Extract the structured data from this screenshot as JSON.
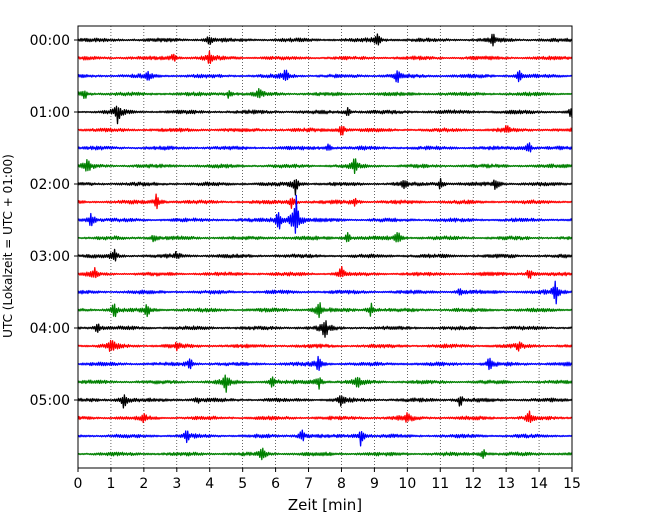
{
  "chart_data": {
    "type": "line",
    "xlabel": "Zeit  [min]",
    "ylabel": "UTC (Lokalzeit = UTC + 01:00)",
    "xlim": [
      0,
      15
    ],
    "x_ticks": [
      0,
      1,
      2,
      3,
      4,
      5,
      6,
      7,
      8,
      9,
      10,
      11,
      12,
      13,
      14,
      15
    ],
    "x_tick_labels": [
      "0",
      "1",
      "2",
      "3",
      "4",
      "5",
      "6",
      "7",
      "8",
      "9",
      "10",
      "11",
      "12",
      "13",
      "14",
      "15"
    ],
    "y_tick_labels": [
      "00:00",
      "01:00",
      "02:00",
      "03:00",
      "04:00",
      "05:00"
    ],
    "y_tick_trace_index": [
      0,
      4,
      8,
      12,
      16,
      20
    ],
    "grid_vertical": true,
    "line_colors": [
      "#000000",
      "#ff0000",
      "#0000ff",
      "#008000"
    ],
    "trace_count": 24,
    "traces": [
      {
        "row": 0,
        "color": "#000000",
        "events": [
          [
            4.0,
            4
          ],
          [
            9.1,
            5
          ],
          [
            12.6,
            4
          ]
        ]
      },
      {
        "row": 1,
        "color": "#ff0000",
        "events": [
          [
            4.0,
            6
          ],
          [
            2.9,
            3
          ]
        ]
      },
      {
        "row": 2,
        "color": "#0000ff",
        "events": [
          [
            2.1,
            4
          ],
          [
            6.3,
            5
          ],
          [
            9.7,
            6
          ],
          [
            13.4,
            4
          ]
        ]
      },
      {
        "row": 3,
        "color": "#008000",
        "events": [
          [
            0.2,
            4
          ],
          [
            4.6,
            4
          ],
          [
            5.5,
            3
          ]
        ]
      },
      {
        "row": 4,
        "color": "#000000",
        "events": [
          [
            1.2,
            8
          ],
          [
            15.0,
            5
          ],
          [
            8.2,
            3
          ]
        ]
      },
      {
        "row": 5,
        "color": "#ff0000",
        "events": [
          [
            8.0,
            5
          ],
          [
            13.0,
            3
          ]
        ]
      },
      {
        "row": 6,
        "color": "#0000ff",
        "events": [
          [
            13.7,
            5
          ],
          [
            7.6,
            3
          ]
        ]
      },
      {
        "row": 7,
        "color": "#008000",
        "events": [
          [
            0.3,
            5
          ],
          [
            8.4,
            6
          ]
        ]
      },
      {
        "row": 8,
        "color": "#000000",
        "events": [
          [
            6.6,
            8
          ],
          [
            11.0,
            5
          ],
          [
            12.7,
            5
          ],
          [
            9.9,
            3
          ]
        ]
      },
      {
        "row": 9,
        "color": "#ff0000",
        "events": [
          [
            2.4,
            7
          ],
          [
            6.5,
            5
          ],
          [
            8.4,
            4
          ]
        ]
      },
      {
        "row": 10,
        "color": "#0000ff",
        "events": [
          [
            0.4,
            8
          ],
          [
            6.1,
            9
          ],
          [
            6.6,
            24
          ]
        ]
      },
      {
        "row": 11,
        "color": "#008000",
        "events": [
          [
            2.3,
            3
          ],
          [
            8.2,
            4
          ],
          [
            9.7,
            5
          ]
        ]
      },
      {
        "row": 12,
        "color": "#000000",
        "events": [
          [
            1.1,
            5
          ],
          [
            3.0,
            3
          ]
        ]
      },
      {
        "row": 13,
        "color": "#ff0000",
        "events": [
          [
            0.5,
            4
          ],
          [
            8.0,
            5
          ],
          [
            13.7,
            4
          ]
        ]
      },
      {
        "row": 14,
        "color": "#0000ff",
        "events": [
          [
            14.5,
            9
          ],
          [
            11.6,
            3
          ]
        ]
      },
      {
        "row": 15,
        "color": "#008000",
        "events": [
          [
            1.1,
            6
          ],
          [
            7.3,
            8
          ],
          [
            8.9,
            6
          ],
          [
            2.1,
            4
          ]
        ]
      },
      {
        "row": 16,
        "color": "#000000",
        "events": [
          [
            7.5,
            8
          ],
          [
            0.6,
            4
          ]
        ]
      },
      {
        "row": 17,
        "color": "#ff0000",
        "events": [
          [
            1.0,
            8
          ],
          [
            13.4,
            4
          ],
          [
            3.0,
            3
          ]
        ]
      },
      {
        "row": 18,
        "color": "#0000ff",
        "events": [
          [
            7.3,
            6
          ],
          [
            12.5,
            5
          ],
          [
            3.4,
            4
          ]
        ]
      },
      {
        "row": 19,
        "color": "#008000",
        "events": [
          [
            4.5,
            7
          ],
          [
            5.9,
            4
          ],
          [
            7.3,
            6
          ],
          [
            8.5,
            5
          ]
        ]
      },
      {
        "row": 20,
        "color": "#000000",
        "events": [
          [
            1.4,
            8
          ],
          [
            11.6,
            5
          ],
          [
            8.0,
            4
          ],
          [
            3.6,
            3
          ]
        ]
      },
      {
        "row": 21,
        "color": "#ff0000",
        "events": [
          [
            10.0,
            6
          ],
          [
            13.7,
            5
          ],
          [
            2.0,
            3
          ]
        ]
      },
      {
        "row": 22,
        "color": "#0000ff",
        "events": [
          [
            8.6,
            8
          ],
          [
            6.8,
            5
          ],
          [
            3.3,
            4
          ]
        ]
      },
      {
        "row": 23,
        "color": "#008000",
        "events": [
          [
            5.6,
            5
          ],
          [
            12.3,
            4
          ]
        ]
      }
    ]
  }
}
